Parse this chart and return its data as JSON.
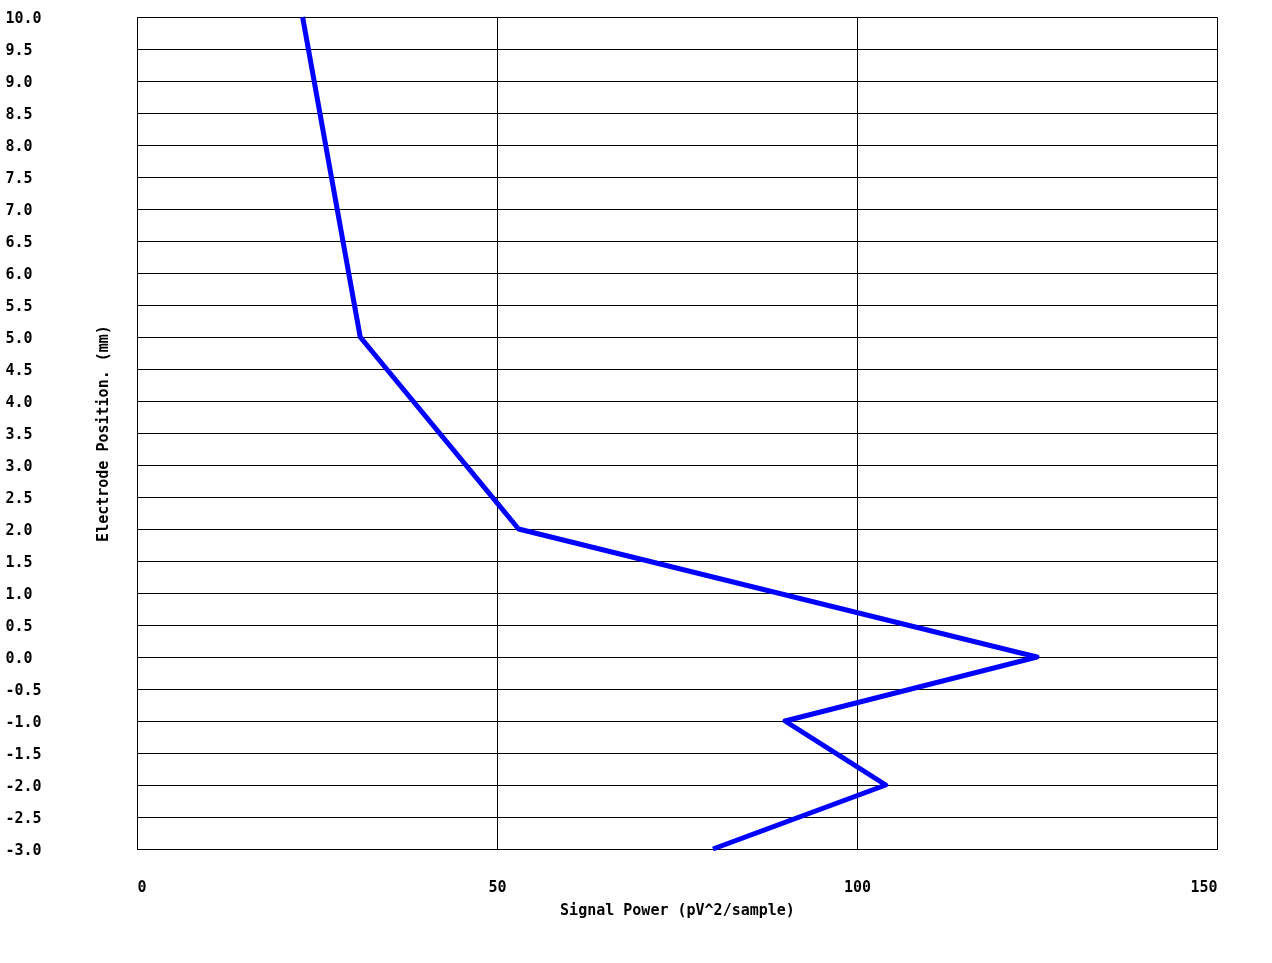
{
  "chart_data": {
    "type": "line",
    "xlabel": "Signal Power (pV^2/sample)",
    "ylabel": "Electrode Position. (mm)",
    "x": [
      23,
      31,
      53,
      125,
      90,
      104,
      80
    ],
    "series": [
      {
        "color": "#0000ff",
        "values": [
          10,
          5,
          2,
          0,
          -1,
          -2,
          -3
        ]
      }
    ],
    "xlim": [
      0,
      150
    ],
    "xticks": [
      0,
      50,
      100,
      150
    ],
    "ylim": [
      -3,
      10
    ],
    "yticks": [
      {
        "value": -3,
        "label": "-3.0"
      },
      {
        "value": -2.5,
        "label": "-2.5"
      },
      {
        "value": -2,
        "label": "-2.0"
      },
      {
        "value": -1.5,
        "label": "-1.5"
      },
      {
        "value": -1,
        "label": "-1.0"
      },
      {
        "value": -0.5,
        "label": "-0.5"
      },
      {
        "value": 0,
        "label": "0.0"
      },
      {
        "value": 0.5,
        "label": "0.5"
      },
      {
        "value": 1,
        "label": "1.0"
      },
      {
        "value": 1.5,
        "label": "1.5"
      },
      {
        "value": 2,
        "label": "2.0"
      },
      {
        "value": 2.5,
        "label": "2.5"
      },
      {
        "value": 3,
        "label": "3.0"
      },
      {
        "value": 3.5,
        "label": "3.5"
      },
      {
        "value": 4,
        "label": "4.0"
      },
      {
        "value": 4.5,
        "label": "4.5"
      },
      {
        "value": 5,
        "label": "5.0"
      },
      {
        "value": 5.5,
        "label": "5.5"
      },
      {
        "value": 6,
        "label": "6.0"
      },
      {
        "value": 6.5,
        "label": "6.5"
      },
      {
        "value": 7,
        "label": "7.0"
      },
      {
        "value": 7.5,
        "label": "7.5"
      },
      {
        "value": 8,
        "label": "8.0"
      },
      {
        "value": 8.5,
        "label": "8.5"
      },
      {
        "value": 9,
        "label": "9.0"
      },
      {
        "value": 9.5,
        "label": "9.5"
      },
      {
        "value": 10,
        "label": "10.0"
      }
    ],
    "grid": true,
    "marker": "none",
    "line_style": "solid"
  }
}
